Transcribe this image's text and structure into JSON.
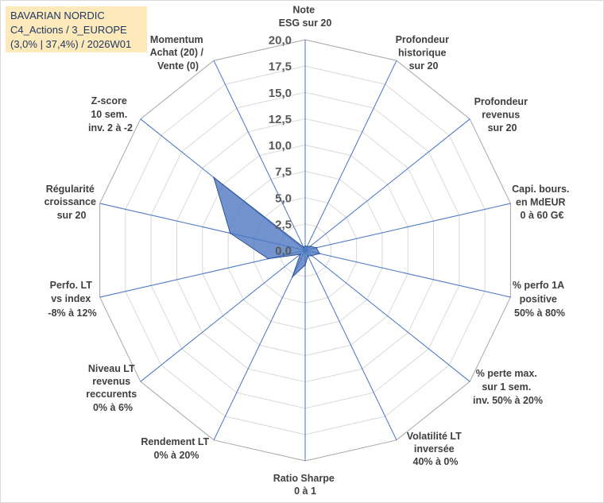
{
  "chart_data": {
    "type": "radar",
    "title_lines": [
      "BAVARIAN NORDIC",
      "C4_Actions / 3_EUROPE",
      "(3,0% | 37,4%) / 2026W01"
    ],
    "rlim": [
      0,
      20
    ],
    "r_tick_values": [
      0,
      2.5,
      5,
      7.5,
      10,
      12.5,
      15,
      17.5,
      20
    ],
    "r_ticks": [
      "0,0",
      "2,5",
      "5,0",
      "7,5",
      "10,0",
      "12,5",
      "15,0",
      "17,5",
      "20,0"
    ],
    "axes": [
      {
        "label_lines": [
          "Note",
          "ESG sur 20"
        ]
      },
      {
        "label_lines": [
          "Profondeur",
          "historique",
          "sur 20"
        ]
      },
      {
        "label_lines": [
          "Profondeur",
          "revenus",
          "sur 20"
        ]
      },
      {
        "label_lines": [
          "Capi. bours.",
          "en MdEUR",
          "0 à 60 G€"
        ]
      },
      {
        "label_lines": [
          "% perfo 1A",
          "positive",
          "50% à 80%"
        ]
      },
      {
        "label_lines": [
          "% perte max.",
          "sur 1 sem.",
          "inv. 50% à 20%"
        ]
      },
      {
        "label_lines": [
          "Volatilité LT",
          "inversée",
          "40% à 0%"
        ]
      },
      {
        "label_lines": [
          "Ratio Sharpe",
          "0 à 1"
        ]
      },
      {
        "label_lines": [
          "Rendement LT",
          "0% à 20%"
        ]
      },
      {
        "label_lines": [
          "Niveau LT",
          "revenus",
          "reccurents",
          "0% à 6%"
        ]
      },
      {
        "label_lines": [
          "Perfo. LT",
          "vs index",
          "-8% à 12%"
        ]
      },
      {
        "label_lines": [
          "Régularité",
          "croissance",
          "sur 20"
        ]
      },
      {
        "label_lines": [
          "Z-score",
          "10 sem.",
          "inv. 2 à -2"
        ]
      },
      {
        "label_lines": [
          "Momentum",
          "Achat (20) /",
          "Vente (0)"
        ]
      }
    ],
    "values": [
      0.4,
      0.4,
      0.6,
      1.1,
      1.4,
      0.8,
      0.6,
      1.4,
      2.8,
      0.6,
      3.6,
      7.3,
      11.1,
      0.3
    ],
    "grid": true
  },
  "colors": {
    "background": "#ffffff",
    "frame": "#d9d9d9",
    "grid": "#d9d9d9",
    "outer_ring": "#a6a6a6",
    "axis": "#4472c4",
    "series_fill": "#4a74c0",
    "series_stroke": "#2f5597",
    "tick_text": "#595959",
    "label_text": "#404040",
    "title_bg": "#fde9b9",
    "title_text": "#203864"
  }
}
